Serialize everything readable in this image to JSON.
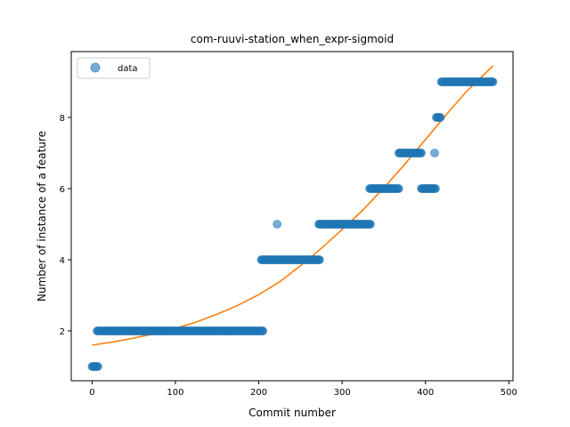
{
  "chart_data": {
    "type": "scatter",
    "title": "com-ruuvi-station_when_expr-sigmoid",
    "xlabel": "Commit number",
    "ylabel": "Number of instance of a feature",
    "xlim": [
      -25,
      505
    ],
    "ylim": [
      0.6,
      9.85
    ],
    "xticks": [
      0,
      100,
      200,
      300,
      400,
      500
    ],
    "yticks": [
      2,
      4,
      6,
      8
    ],
    "grid": false,
    "legend": {
      "position": "top-left",
      "entries": [
        "data"
      ]
    },
    "colors": {
      "data": "#1f77b4",
      "fit": "#ff7f0e"
    },
    "series": [
      {
        "name": "data",
        "kind": "scatter",
        "segments": [
          {
            "x_start": 0,
            "x_end": 7,
            "y": 1
          },
          {
            "x_start": 6,
            "x_end": 205,
            "y": 2
          },
          {
            "x_start": 203,
            "x_end": 273,
            "y": 4
          },
          {
            "x_start": 272,
            "x_end": 334,
            "y": 5
          },
          {
            "x_start": 333,
            "x_end": 368,
            "y": 6
          },
          {
            "x_start": 368,
            "x_end": 395,
            "y": 7
          },
          {
            "x_start": 395,
            "x_end": 412,
            "y": 6
          },
          {
            "x_start": 413,
            "x_end": 418,
            "y": 8
          },
          {
            "x_start": 419,
            "x_end": 481,
            "y": 9
          }
        ],
        "points": [
          {
            "x": 222,
            "y": 5
          },
          {
            "x": 411,
            "y": 7
          }
        ]
      },
      {
        "name": "",
        "kind": "line",
        "x": [
          0,
          25,
          50,
          75,
          100,
          125,
          150,
          175,
          200,
          225,
          250,
          275,
          300,
          325,
          350,
          375,
          400,
          425,
          450,
          481
        ],
        "y": [
          1.6,
          1.69,
          1.8,
          1.92,
          2.07,
          2.25,
          2.47,
          2.72,
          3.02,
          3.38,
          3.83,
          4.32,
          4.85,
          5.4,
          6.02,
          6.68,
          7.38,
          8.08,
          8.75,
          9.45
        ]
      }
    ]
  }
}
